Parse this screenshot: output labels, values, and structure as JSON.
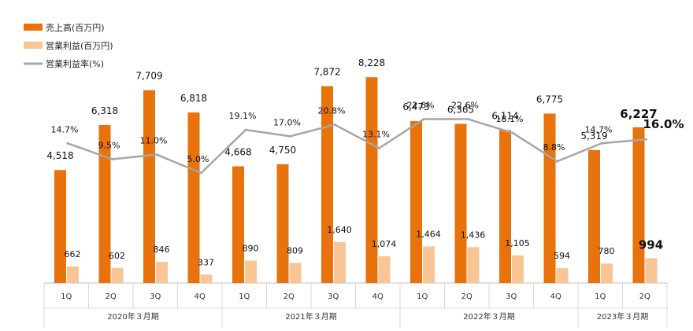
{
  "chart_data": {
    "type": "bar",
    "title": "",
    "xlabel": "",
    "ylabel": "",
    "categories": [
      "1Q",
      "2Q",
      "3Q",
      "4Q",
      "1Q",
      "2Q",
      "3Q",
      "4Q",
      "1Q",
      "2Q",
      "3Q",
      "4Q",
      "1Q",
      "2Q"
    ],
    "groups": [
      {
        "label": "2020年３月期",
        "start": 0,
        "end": 3
      },
      {
        "label": "2021年３月期",
        "start": 4,
        "end": 7
      },
      {
        "label": "2022年３月期",
        "start": 8,
        "end": 11
      },
      {
        "label": "2023年３月期",
        "start": 12,
        "end": 13
      }
    ],
    "series": [
      {
        "name": "売上高(百万円)",
        "kind": "bar",
        "color": "#E8720C",
        "values": [
          4518,
          6318,
          7709,
          6818,
          4668,
          4750,
          7872,
          8228,
          6473,
          6365,
          6114,
          6775,
          5319,
          6227
        ],
        "labels": [
          "4,518",
          "6,318",
          "7,709",
          "6,818",
          "4,668",
          "4,750",
          "7,872",
          "8,228",
          "6,473",
          "6,365",
          "6,114",
          "6,775",
          "5,319",
          "6,227"
        ]
      },
      {
        "name": "営業利益(百万円)",
        "kind": "bar",
        "color": "#F9C595",
        "values": [
          662,
          602,
          846,
          337,
          890,
          809,
          1640,
          1074,
          1464,
          1436,
          1105,
          594,
          780,
          994
        ],
        "labels": [
          "662",
          "602",
          "846",
          "337",
          "890",
          "809",
          "1,640",
          "1,074",
          "1,464",
          "1,436",
          "1,105",
          "594",
          "780",
          "994"
        ]
      },
      {
        "name": "営業利益率(%)",
        "kind": "line",
        "color": "#A6A6A6",
        "values": [
          14.7,
          9.5,
          11.0,
          5.0,
          19.1,
          17.0,
          20.8,
          13.1,
          22.6,
          22.6,
          18.1,
          8.8,
          14.7,
          16.0
        ],
        "labels": [
          "14.7%",
          "9.5%",
          "11.0%",
          "5.0%",
          "19.1%",
          "17.0%",
          "20.8%",
          "13.1%",
          "22.6%",
          "22.6%",
          "18.1%",
          "8.8%",
          "14.7%",
          "16.0%"
        ]
      }
    ],
    "highlight_index": 13,
    "bar_ylim": [
      0,
      8800
    ],
    "line_ylim": [
      -31,
      41
    ],
    "legend_position": "top-left"
  }
}
